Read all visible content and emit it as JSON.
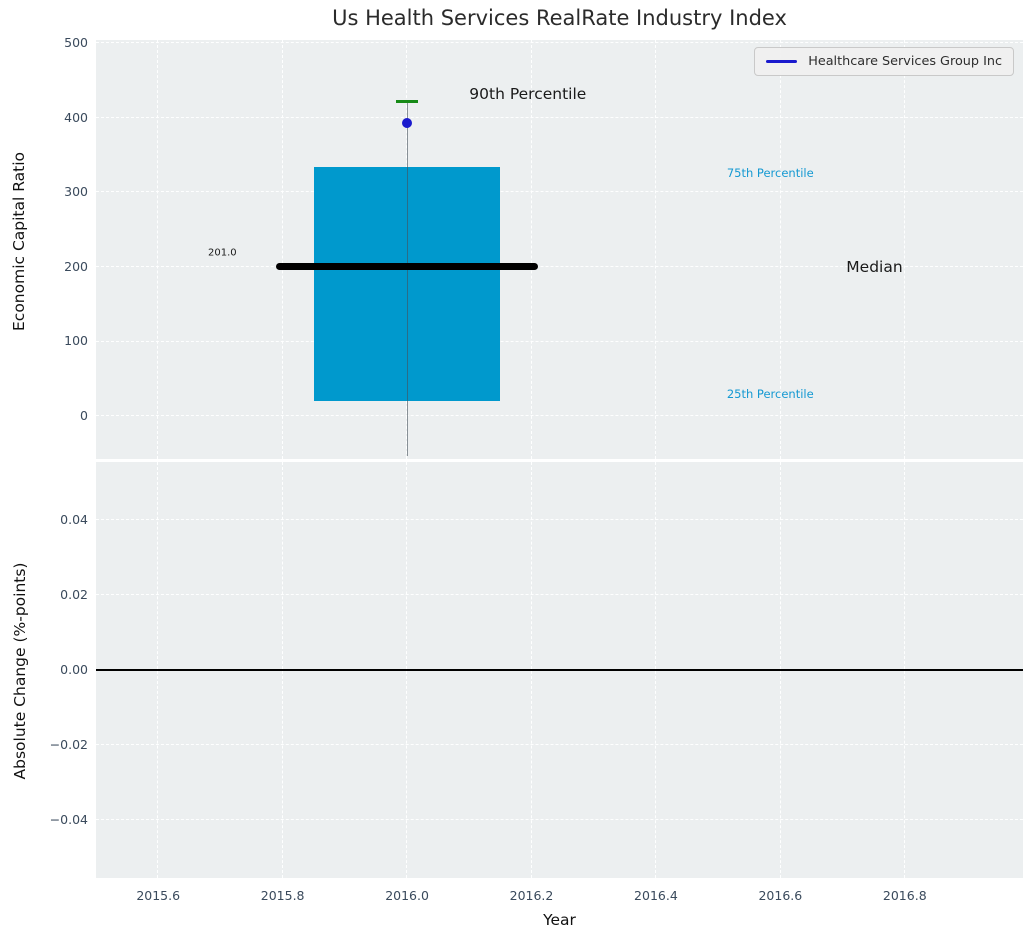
{
  "figure": {
    "title": "Us Health Services RealRate Industry Index",
    "axes_bg": "#ECEFF0",
    "grid_color": "rgba(255,255,255,0.95)",
    "tick_color": "#3A4A5C"
  },
  "chart_data": [
    {
      "type": "boxplot-summary",
      "title": "Us Health Services RealRate Industry Index",
      "ylabel": "Economic Capital Ratio",
      "xlim": [
        2015.5,
        2016.99
      ],
      "ylim": [
        -57.5,
        504
      ],
      "grid": true,
      "xticks": [
        {
          "v": 2015.6
        },
        {
          "v": 2015.8
        },
        {
          "v": 2016.0
        },
        {
          "v": 2016.2
        },
        {
          "v": 2016.4
        },
        {
          "v": 2016.6
        },
        {
          "v": 2016.8
        }
      ],
      "yticks": [
        {
          "v": 0,
          "label": "0"
        },
        {
          "v": 100,
          "label": "100"
        },
        {
          "v": 200,
          "label": "200"
        },
        {
          "v": 300,
          "label": "300"
        },
        {
          "v": 400,
          "label": "400"
        },
        {
          "v": 500,
          "label": "500"
        }
      ],
      "box": {
        "x0": 2015.85,
        "x1": 2016.15,
        "p25": 20,
        "p75": 334,
        "color": "#0099CD"
      },
      "median": {
        "value": 201.0,
        "x0": 2015.79,
        "x1": 2016.21,
        "color": "#000000",
        "thickness": 7
      },
      "p90_cap": {
        "value": 422,
        "x": 2016.0,
        "half_width": 0.017,
        "color": "#168A16"
      },
      "whisker_line": {
        "x": 2016.0,
        "top": 422,
        "bottom": -53,
        "color": "rgba(70,80,90,0.6)"
      },
      "series": [
        {
          "name": "Healthcare Services Group Inc",
          "x": 2016.0,
          "y": 393,
          "marker": "circle",
          "color": "#1A1ACD",
          "radius": 5
        }
      ],
      "legend": {
        "loc": "upper right",
        "label": "Healthcare Services Group Inc",
        "line_color": "#1A1ACD"
      },
      "annotations": [
        {
          "text": "90th Percentile",
          "x": 2016.1,
          "y": 432,
          "color": "#1a1a1a",
          "size": 15.5
        },
        {
          "text": "75th Percentile",
          "x": 2016.514,
          "y": 326,
          "color": "#1599D2",
          "size": 11.5
        },
        {
          "text": "Median",
          "x": 2016.706,
          "y": 200,
          "color": "#1a1a1a",
          "size": 15.5
        },
        {
          "text": "25th Percentile",
          "x": 2016.514,
          "y": 29,
          "color": "#1599D2",
          "size": 11.5
        },
        {
          "text": "201.0",
          "x": 2015.68,
          "y": 219,
          "color": "#1a1a1a",
          "size": 10
        }
      ]
    },
    {
      "type": "line",
      "ylabel": "Absolute Change (%-points)",
      "xlabel": "Year",
      "xlim": [
        2015.5,
        2016.99
      ],
      "ylim": [
        -0.0554,
        0.0554
      ],
      "grid": true,
      "xticks": [
        {
          "v": 2015.6,
          "label": "2015.6"
        },
        {
          "v": 2015.8,
          "label": "2015.8"
        },
        {
          "v": 2016.0,
          "label": "2016.0"
        },
        {
          "v": 2016.2,
          "label": "2016.2"
        },
        {
          "v": 2016.4,
          "label": "2016.4"
        },
        {
          "v": 2016.6,
          "label": "2016.6"
        },
        {
          "v": 2016.8,
          "label": "2016.8"
        }
      ],
      "yticks": [
        {
          "v": 0.04,
          "label": "0.04"
        },
        {
          "v": 0.02,
          "label": "0.02"
        },
        {
          "v": 0.0,
          "label": "0.00"
        },
        {
          "v": -0.02,
          "label": "−0.02"
        },
        {
          "v": -0.04,
          "label": "−0.04"
        }
      ],
      "zero_line": {
        "y": 0.0,
        "color": "#000000",
        "thickness": 1.5
      },
      "series": [
        {
          "name": "Healthcare Services Group Inc",
          "x": [
            2016.0
          ],
          "y": [
            0.0
          ],
          "color": "#1A1ACD"
        }
      ]
    }
  ]
}
